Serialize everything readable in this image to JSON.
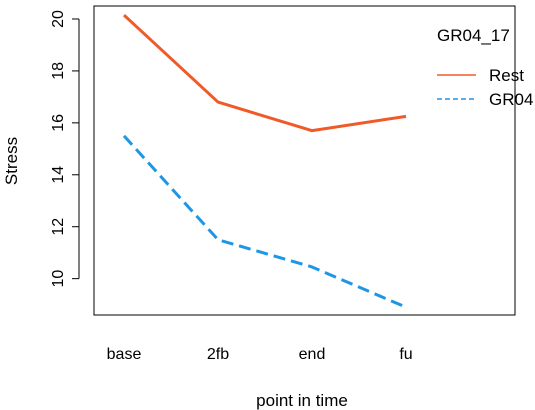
{
  "chart_data": {
    "type": "line",
    "categories": [
      "base",
      "2fb",
      "end",
      "fu"
    ],
    "series": [
      {
        "name": "Rest",
        "values": [
          20.15,
          16.8,
          15.7,
          16.25
        ],
        "color": "#f05a28",
        "dash": "solid"
      },
      {
        "name": "GR04",
        "values": [
          15.5,
          11.5,
          10.45,
          8.9
        ],
        "color": "#1e96e6",
        "dash": "dashed"
      }
    ],
    "xlabel": "point in time",
    "ylabel": "Stress",
    "yticks": [
      10,
      12,
      14,
      16,
      18,
      20
    ],
    "ylim": [
      8.6,
      20.5
    ],
    "legend": {
      "title": "GR04_17",
      "position": "top-right"
    },
    "grid": false
  }
}
